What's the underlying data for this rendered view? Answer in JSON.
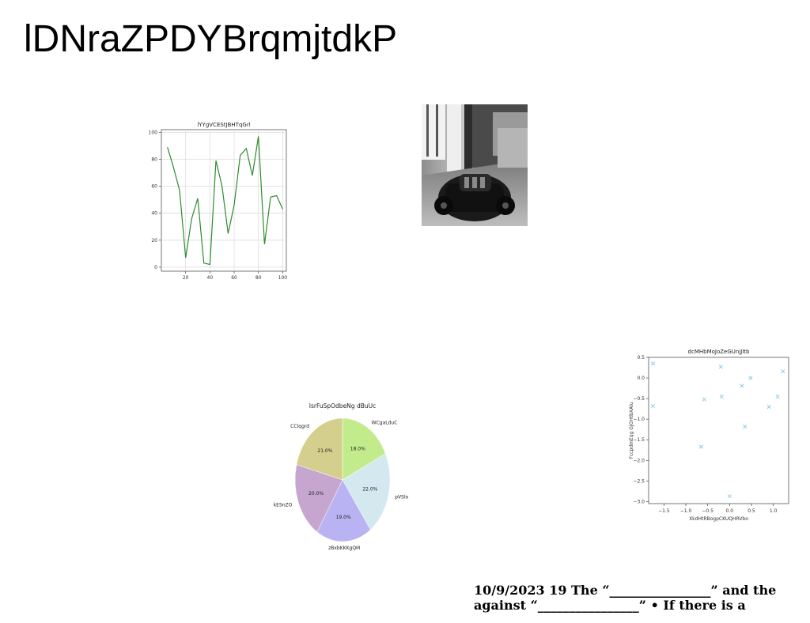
{
  "page": {
    "title": "lDNraZPDYBrqmjtdkP"
  },
  "photo": {
    "icon": "car-toy-photo"
  },
  "footer": {
    "line1": "10/9/2023 19 The “________________” and the",
    "line2": "against “________________” • If there is a"
  },
  "chart_data": [
    {
      "type": "line",
      "title": "lYYgVCEStJBHTqGrl",
      "xlabel": "",
      "ylabel": "",
      "x": [
        5,
        10,
        15,
        20,
        25,
        30,
        35,
        40,
        45,
        50,
        55,
        60,
        65,
        70,
        75,
        80,
        85,
        90,
        95,
        100
      ],
      "series": [
        {
          "values": [
            89,
            74,
            57,
            7,
            36,
            51,
            3,
            2,
            79,
            60,
            25,
            46,
            83,
            88,
            68,
            97,
            17,
            52,
            53,
            43
          ],
          "color": "#2e8b2e"
        }
      ],
      "xlim": [
        0,
        103
      ],
      "ylim": [
        -3,
        102
      ],
      "xticks": [
        20,
        40,
        60,
        80,
        100
      ],
      "yticks": [
        0,
        20,
        40,
        60,
        80,
        100
      ],
      "grid": true
    },
    {
      "type": "pie",
      "title": "IsrFuSpOdbeNg dBuUc",
      "slices": [
        {
          "label": "WCgaLduC",
          "pct": "18.0%",
          "value": 18.0,
          "color": "#c2ec8c"
        },
        {
          "label": "pVSlo",
          "pct": "22.0%",
          "value": 22.0,
          "color": "#d3e9ef"
        },
        {
          "label": "zBxbKKKgQM",
          "pct": "19.0%",
          "value": 19.0,
          "color": "#b9b3f3"
        },
        {
          "label": "kESnZO",
          "pct": "20.0%",
          "value": 20.0,
          "color": "#c6a6cf"
        },
        {
          "label": "CCIqgrd",
          "pct": "21.0%",
          "value": 21.0,
          "color": "#d5cf8d"
        }
      ]
    },
    {
      "type": "scatter",
      "title": "dcMHbMoJoZeGUnjJltb",
      "xlabel": "XkdHtRBogpCKUQHRVbo",
      "ylabel": "FccpdmEqg GjGHtbXAlu",
      "marker": "x",
      "color": "#87ceeb",
      "points": [
        [
          -1.75,
          0.35
        ],
        [
          -1.75,
          -0.68
        ],
        [
          -0.58,
          -0.52
        ],
        [
          -0.65,
          -1.67
        ],
        [
          -0.2,
          0.27
        ],
        [
          -0.18,
          -0.45
        ],
        [
          0.0,
          -2.87
        ],
        [
          0.28,
          -0.19
        ],
        [
          0.35,
          -1.18
        ],
        [
          0.48,
          0.0
        ],
        [
          0.9,
          -0.7
        ],
        [
          1.1,
          -0.45
        ],
        [
          1.22,
          0.16
        ]
      ],
      "xlim": [
        -1.85,
        1.35
      ],
      "ylim": [
        -3.05,
        0.5
      ],
      "xticks": [
        "-1.5",
        "-1.0",
        "-0.5",
        "0.0",
        "0.5",
        "1.0"
      ],
      "yticks": [
        "0.5",
        "0.0",
        "-0.5",
        "-1.0",
        "-1.5",
        "-2.0",
        "-2.5",
        "-3.0"
      ],
      "grid": false
    }
  ]
}
